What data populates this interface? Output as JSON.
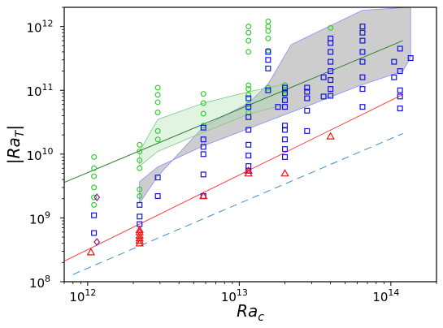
{
  "chart_data": {
    "type": "scatter",
    "x_scale": "log",
    "y_scale": "log",
    "xlim": [
      700000000000.0,
      200000000000000.0
    ],
    "ylim": [
      100000000.0,
      2000000000000.0
    ],
    "xlabel": {
      "base": "Ra",
      "sub": "c"
    },
    "ylabel": {
      "base": "|Ra",
      "sub": "T",
      "end": "|"
    },
    "x_ticks": [
      {
        "value": 1000000000000.0,
        "base": "10",
        "exp": "12"
      },
      {
        "value": 10000000000000.0,
        "base": "10",
        "exp": "13"
      },
      {
        "value": 100000000000000.0,
        "base": "10",
        "exp": "14"
      }
    ],
    "y_ticks": [
      {
        "value": 100000000.0,
        "base": "10",
        "exp": "8"
      },
      {
        "value": 1000000000.0,
        "base": "10",
        "exp": "9"
      },
      {
        "value": 10000000000.0,
        "base": "10",
        "exp": "10"
      },
      {
        "value": 100000000000.0,
        "base": "10",
        "exp": "11"
      },
      {
        "value": 1000000000000.0,
        "base": "10",
        "exp": "12"
      }
    ],
    "regions": [
      {
        "fill": "#c8c8c8",
        "edge": "#8a8aff",
        "opacity": 0.9,
        "upper": [
          [
            2200000000000.0,
            1700000000.0
          ],
          [
            2900000000000.0,
            4500000000.0
          ],
          [
            5800000000000.0,
            27000000000.0
          ],
          [
            11500000000000.0,
            63000000000.0
          ],
          [
            15500000000000.0,
            125000000000.0
          ],
          [
            22000000000000.0,
            520000000000.0
          ],
          [
            65000000000000.0,
            1800000000000.0
          ],
          [
            130000000000000.0,
            2000000000000.0
          ],
          [
            135000000000000.0,
            2000000000000.0
          ]
        ],
        "lower": [
          [
            135000000000000.0,
            330000000000.0
          ],
          [
            120000000000000.0,
            200000000000.0
          ],
          [
            60000000000000.0,
            115000000000.0
          ],
          [
            30000000000000.0,
            60000000000.0
          ],
          [
            15000000000000.0,
            32000000000.0
          ],
          [
            5800000000000.0,
            13500000000.0
          ],
          [
            2900000000000.0,
            6300000000.0
          ],
          [
            2200000000000.0,
            3700000000.0
          ]
        ]
      },
      {
        "fill": "#a8dca8",
        "edge": "#80c880",
        "opacity": 0.35,
        "upper": [
          [
            2200000000000.0,
            11000000000.0
          ],
          [
            2900000000000.0,
            35000000000.0
          ],
          [
            5800000000000.0,
            63000000000.0
          ],
          [
            11500000000000.0,
            95000000000.0
          ],
          [
            20000000000000.0,
            125000000000.0
          ]
        ],
        "lower": [
          [
            20000000000000.0,
            60000000000.0
          ],
          [
            11500000000000.0,
            42000000000.0
          ],
          [
            5800000000000.0,
            22000000000.0
          ],
          [
            2900000000000.0,
            11000000000.0
          ],
          [
            2200000000000.0,
            6500000000.0
          ]
        ]
      }
    ],
    "lines": [
      {
        "name": "",
        "color": "#2e7d2e",
        "dash": "",
        "x": [
          700000000000.0,
          120000000000000.0
        ],
        "y": [
          3600000000.0,
          600000000000.0
        ]
      },
      {
        "name": "",
        "color": "#ff3b3b",
        "dash": "",
        "x": [
          700000000000.0,
          120000000000000.0
        ],
        "y": [
          210000000.0,
          86000000000.0
        ]
      },
      {
        "name": "",
        "color": "#3a8fd0",
        "dash": "9,6",
        "x": [
          800000000000.0,
          120000000000000.0
        ],
        "y": [
          130000000.0,
          21000000000.0
        ]
      }
    ],
    "series": [
      {
        "name": "",
        "marker": "circle",
        "color": "#33cc33",
        "x": [
          1100000000000.0,
          1100000000000.0,
          1100000000000.0,
          1100000000000.0,
          1100000000000.0,
          1100000000000.0,
          2200000000000.0,
          2200000000000.0,
          2200000000000.0,
          2200000000000.0,
          2200000000000.0,
          2200000000000.0,
          2900000000000.0,
          2900000000000.0,
          2900000000000.0,
          2900000000000.0,
          2900000000000.0,
          2900000000000.0,
          5800000000000.0,
          5800000000000.0,
          5800000000000.0,
          5800000000000.0,
          11500000000000.0,
          11500000000000.0,
          11500000000000.0,
          11500000000000.0,
          11500000000000.0,
          11500000000000.0,
          11500000000000.0,
          11500000000000.0,
          11500000000000.0,
          15500000000000.0,
          15500000000000.0,
          15500000000000.0,
          15500000000000.0,
          15500000000000.0,
          15500000000000.0,
          20000000000000.0,
          20000000000000.0,
          20000000000000.0,
          40000000000000.0
        ],
        "y": [
          9000000000.0,
          6000000000.0,
          4500000000.0,
          3000000000.0,
          2100000000.0,
          1600000000.0,
          14000000000.0,
          11000000000.0,
          8000000000.0,
          6000000000.0,
          2800000000.0,
          2200000000.0,
          110000000000.0,
          85000000000.0,
          65000000000.0,
          45000000000.0,
          23000000000.0,
          17000000000.0,
          88000000000.0,
          63000000000.0,
          43000000000.0,
          28000000000.0,
          1000000000000.0,
          800000000000.0,
          600000000000.0,
          400000000000.0,
          120000000000.0,
          105000000000.0,
          85000000000.0,
          60000000000.0,
          45000000000.0,
          1200000000000.0,
          1000000000000.0,
          850000000000.0,
          650000000000.0,
          420000000000.0,
          110000000000.0,
          120000000000.0,
          100000000000.0,
          85000000000.0,
          950000000000.0
        ]
      },
      {
        "name": "",
        "marker": "square",
        "color": "#1111dd",
        "x": [
          1100000000000.0,
          1100000000000.0,
          2200000000000.0,
          2200000000000.0,
          2200000000000.0,
          2900000000000.0,
          2900000000000.0,
          5800000000000.0,
          5800000000000.0,
          5800000000000.0,
          5800000000000.0,
          5800000000000.0,
          5800000000000.0,
          11500000000000.0,
          11500000000000.0,
          11500000000000.0,
          11500000000000.0,
          11500000000000.0,
          11500000000000.0,
          11500000000000.0,
          11500000000000.0,
          15500000000000.0,
          15500000000000.0,
          15500000000000.0,
          15500000000000.0,
          18000000000000.0,
          20000000000000.0,
          20000000000000.0,
          20000000000000.0,
          20000000000000.0,
          20000000000000.0,
          20000000000000.0,
          20000000000000.0,
          20000000000000.0,
          20000000000000.0,
          28000000000000.0,
          28000000000000.0,
          28000000000000.0,
          28000000000000.0,
          28000000000000.0,
          36000000000000.0,
          36000000000000.0,
          40000000000000.0,
          40000000000000.0,
          40000000000000.0,
          40000000000000.0,
          40000000000000.0,
          40000000000000.0,
          40000000000000.0,
          40000000000000.0,
          65000000000000.0,
          65000000000000.0,
          65000000000000.0,
          65000000000000.0,
          65000000000000.0,
          65000000000000.0,
          65000000000000.0,
          65000000000000.0,
          105000000000000.0,
          105000000000000.0,
          115000000000000.0,
          115000000000000.0,
          115000000000000.0,
          115000000000000.0,
          115000000000000.0,
          135000000000000.0
        ],
        "y": [
          1100000000.0,
          580000000.0,
          1600000000.0,
          1050000000.0,
          800000000.0,
          4300000000.0,
          2200000000.0,
          26000000000.0,
          17000000000.0,
          13000000000.0,
          10000000000.0,
          4800000000.0,
          2200000000.0,
          75000000000.0,
          55000000000.0,
          38000000000.0,
          24000000000.0,
          14000000000.0,
          9500000000.0,
          6500000000.0,
          5500000000.0,
          400000000000.0,
          300000000000.0,
          220000000000.0,
          100000000000.0,
          55000000000.0,
          110000000000.0,
          90000000000.0,
          70000000000.0,
          55000000000.0,
          28000000000.0,
          24000000000.0,
          17000000000.0,
          12000000000.0,
          9000000000.0,
          110000000000.0,
          95000000000.0,
          75000000000.0,
          48000000000.0,
          23000000000.0,
          160000000000.0,
          80000000000.0,
          650000000000.0,
          550000000000.0,
          400000000000.0,
          280000000000.0,
          200000000000.0,
          145000000000.0,
          105000000000.0,
          82000000000.0,
          1000000000000.0,
          800000000000.0,
          600000000000.0,
          400000000000.0,
          280000000000.0,
          160000000000.0,
          105000000000.0,
          55000000000.0,
          280000000000.0,
          160000000000.0,
          450000000000.0,
          200000000000.0,
          100000000000.0,
          80000000000.0,
          52000000000.0,
          320000000000.0
        ]
      },
      {
        "name": "",
        "marker": "triangle",
        "color": "#ee1111",
        "x": [
          1050000000000.0,
          2200000000000.0,
          2200000000000.0,
          2200000000000.0,
          2200000000000.0,
          2200000000000.0,
          2200000000000.0,
          5800000000000.0,
          11500000000000.0,
          11500000000000.0,
          20000000000000.0,
          40000000000000.0
        ],
        "y": [
          290000000.0,
          650000000.0,
          600000000.0,
          530000000.0,
          480000000.0,
          440000000.0,
          400000000.0,
          2200000000.0,
          5500000000.0,
          5000000000.0,
          5000000000.0,
          19000000000.0
        ]
      },
      {
        "name": "",
        "marker": "diamond",
        "color": "#8b1a8b",
        "x": [
          1150000000000.0,
          1150000000000.0
        ],
        "y": [
          2100000000.0,
          420000000.0
        ]
      }
    ],
    "grid": false,
    "legend": "none"
  }
}
